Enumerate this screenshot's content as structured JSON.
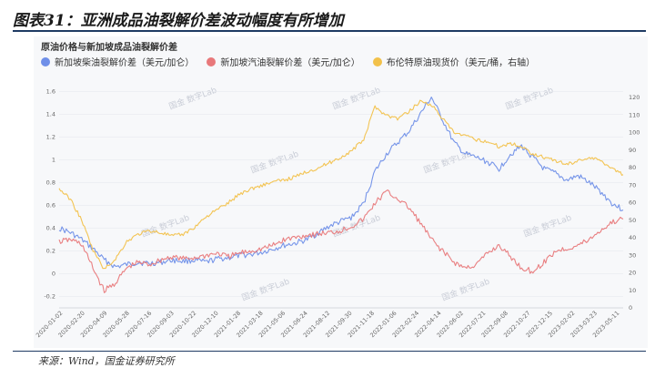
{
  "figure": {
    "title": "图表31：亚洲成品油裂解价差波动幅度有所增加",
    "source": "来源：Wind，国金证券研究所"
  },
  "watermark": "国金 数字Lab",
  "chart_data": {
    "type": "line",
    "title": "原油价格与新加坡成品油裂解价差",
    "left_axis": {
      "ylim": [
        -0.3,
        1.7
      ],
      "ticks": [
        -0.2,
        0,
        0.2,
        0.4,
        0.6,
        0.8,
        1,
        1.2,
        1.4,
        1.6
      ]
    },
    "right_axis": {
      "ylim": [
        0,
        130
      ],
      "ticks": [
        0,
        10,
        20,
        30,
        40,
        50,
        60,
        70,
        80,
        90,
        100,
        110,
        120
      ]
    },
    "x_tick_labels": [
      "2020-01-02",
      "2020-02-20",
      "2020-04-09",
      "2020-05-28",
      "2020-07-16",
      "2020-09-03",
      "2020-10-22",
      "2020-12-10",
      "2021-01-28",
      "2021-03-18",
      "2021-05-06",
      "2021-06-24",
      "2021-08-12",
      "2021-09-30",
      "2021-11-18",
      "2022-01-06",
      "2022-02-24",
      "2022-04-14",
      "2022-06-02",
      "2022-07-21",
      "2022-09-08",
      "2022-10-27",
      "2022-12-15",
      "2023-02-02",
      "2023-03-23",
      "2023-05-11"
    ],
    "series": [
      {
        "name": "新加坡柴油裂解价差（美元/加仑）",
        "axis": "left",
        "color": "#6f8fe8",
        "x": [
          0,
          2,
          4,
          6,
          8,
          10,
          12,
          14,
          16,
          18,
          20,
          22,
          24,
          26,
          28,
          30,
          32,
          34,
          36,
          38,
          40,
          42,
          44,
          46,
          48,
          50,
          52,
          54,
          56,
          58,
          60,
          62,
          64,
          66,
          68,
          70,
          72,
          74,
          76,
          78,
          80,
          82,
          84,
          86,
          88,
          90,
          92,
          94,
          96,
          98,
          100
        ],
        "values": [
          0.4,
          0.36,
          0.3,
          0.22,
          0.12,
          0.06,
          0.08,
          0.1,
          0.09,
          0.1,
          0.12,
          0.11,
          0.12,
          0.1,
          0.13,
          0.14,
          0.16,
          0.17,
          0.19,
          0.22,
          0.25,
          0.27,
          0.3,
          0.36,
          0.42,
          0.46,
          0.5,
          0.62,
          0.9,
          1.05,
          1.15,
          1.25,
          1.4,
          1.55,
          1.35,
          1.15,
          1.05,
          1.02,
          0.98,
          0.92,
          1.05,
          1.12,
          1.02,
          0.92,
          0.88,
          0.82,
          0.86,
          0.8,
          0.72,
          0.62,
          0.56
        ]
      },
      {
        "name": "新加坡汽油裂解价差（美元/加仑）",
        "axis": "left",
        "color": "#e8787a",
        "x": [
          0,
          2,
          4,
          6,
          8,
          10,
          12,
          14,
          16,
          18,
          20,
          22,
          24,
          26,
          28,
          30,
          32,
          34,
          36,
          38,
          40,
          42,
          44,
          46,
          48,
          50,
          52,
          54,
          56,
          58,
          60,
          62,
          64,
          66,
          68,
          70,
          72,
          74,
          76,
          78,
          80,
          82,
          84,
          86,
          88,
          90,
          92,
          94,
          96,
          98,
          100
        ],
        "values": [
          0.28,
          0.3,
          0.26,
          0.05,
          -0.15,
          -0.08,
          0.05,
          0.1,
          0.08,
          0.12,
          0.15,
          0.13,
          0.14,
          0.16,
          0.18,
          0.15,
          0.18,
          0.2,
          0.22,
          0.25,
          0.3,
          0.32,
          0.34,
          0.35,
          0.36,
          0.38,
          0.42,
          0.48,
          0.62,
          0.72,
          0.66,
          0.58,
          0.45,
          0.3,
          0.2,
          0.1,
          0.05,
          0.08,
          0.18,
          0.25,
          0.15,
          0.05,
          0.02,
          0.1,
          0.2,
          0.22,
          0.25,
          0.3,
          0.38,
          0.45,
          0.48
        ]
      },
      {
        "name": "布伦特原油现货价（美元/桶，右轴）",
        "axis": "right",
        "color": "#f2c14a",
        "x": [
          0,
          2,
          4,
          6,
          8,
          10,
          12,
          14,
          16,
          18,
          20,
          22,
          24,
          26,
          28,
          30,
          32,
          34,
          36,
          38,
          40,
          42,
          44,
          46,
          48,
          50,
          52,
          54,
          56,
          58,
          60,
          62,
          64,
          66,
          68,
          70,
          72,
          74,
          76,
          78,
          80,
          82,
          84,
          86,
          88,
          90,
          92,
          94,
          96,
          98,
          100
        ],
        "values": [
          68,
          62,
          50,
          33,
          22,
          28,
          38,
          42,
          44,
          43,
          41,
          42,
          46,
          52,
          56,
          60,
          65,
          68,
          70,
          72,
          73,
          75,
          78,
          80,
          83,
          86,
          90,
          96,
          115,
          110,
          108,
          112,
          118,
          116,
          108,
          100,
          98,
          96,
          95,
          92,
          94,
          92,
          88,
          86,
          84,
          82,
          84,
          86,
          84,
          80,
          76
        ]
      }
    ]
  }
}
